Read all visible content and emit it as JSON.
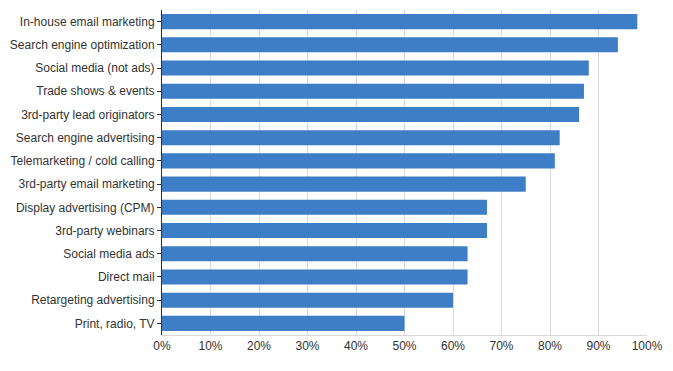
{
  "chart_data": {
    "type": "bar",
    "orientation": "horizontal",
    "categories": [
      "In-house email marketing",
      "Search engine optimization",
      "Social media (not ads)",
      "Trade shows & events",
      "3rd-party lead originators",
      "Search engine advertising",
      "Telemarketing / cold calling",
      "3rd-party email marketing",
      "Display advertising (CPM)",
      "3rd-party webinars",
      "Social media ads",
      "Direct mail",
      "Retargeting advertising",
      "Print, radio, TV"
    ],
    "values": [
      98,
      94,
      88,
      87,
      86,
      82,
      81,
      75,
      67,
      67,
      63,
      63,
      60,
      50
    ],
    "color": "#3d7ec6",
    "xlim": [
      0,
      100
    ],
    "xticks": [
      {
        "value": 0,
        "label": "0%"
      },
      {
        "value": 10,
        "label": "10%"
      },
      {
        "value": 20,
        "label": "20%"
      },
      {
        "value": 30,
        "label": "30%"
      },
      {
        "value": 40,
        "label": "40%"
      },
      {
        "value": 50,
        "label": "50%"
      },
      {
        "value": 60,
        "label": "60%"
      },
      {
        "value": 70,
        "label": "70%"
      },
      {
        "value": 80,
        "label": "80%"
      },
      {
        "value": 90,
        "label": "90%"
      },
      {
        "value": 100,
        "label": "100%"
      }
    ],
    "grid": true
  }
}
